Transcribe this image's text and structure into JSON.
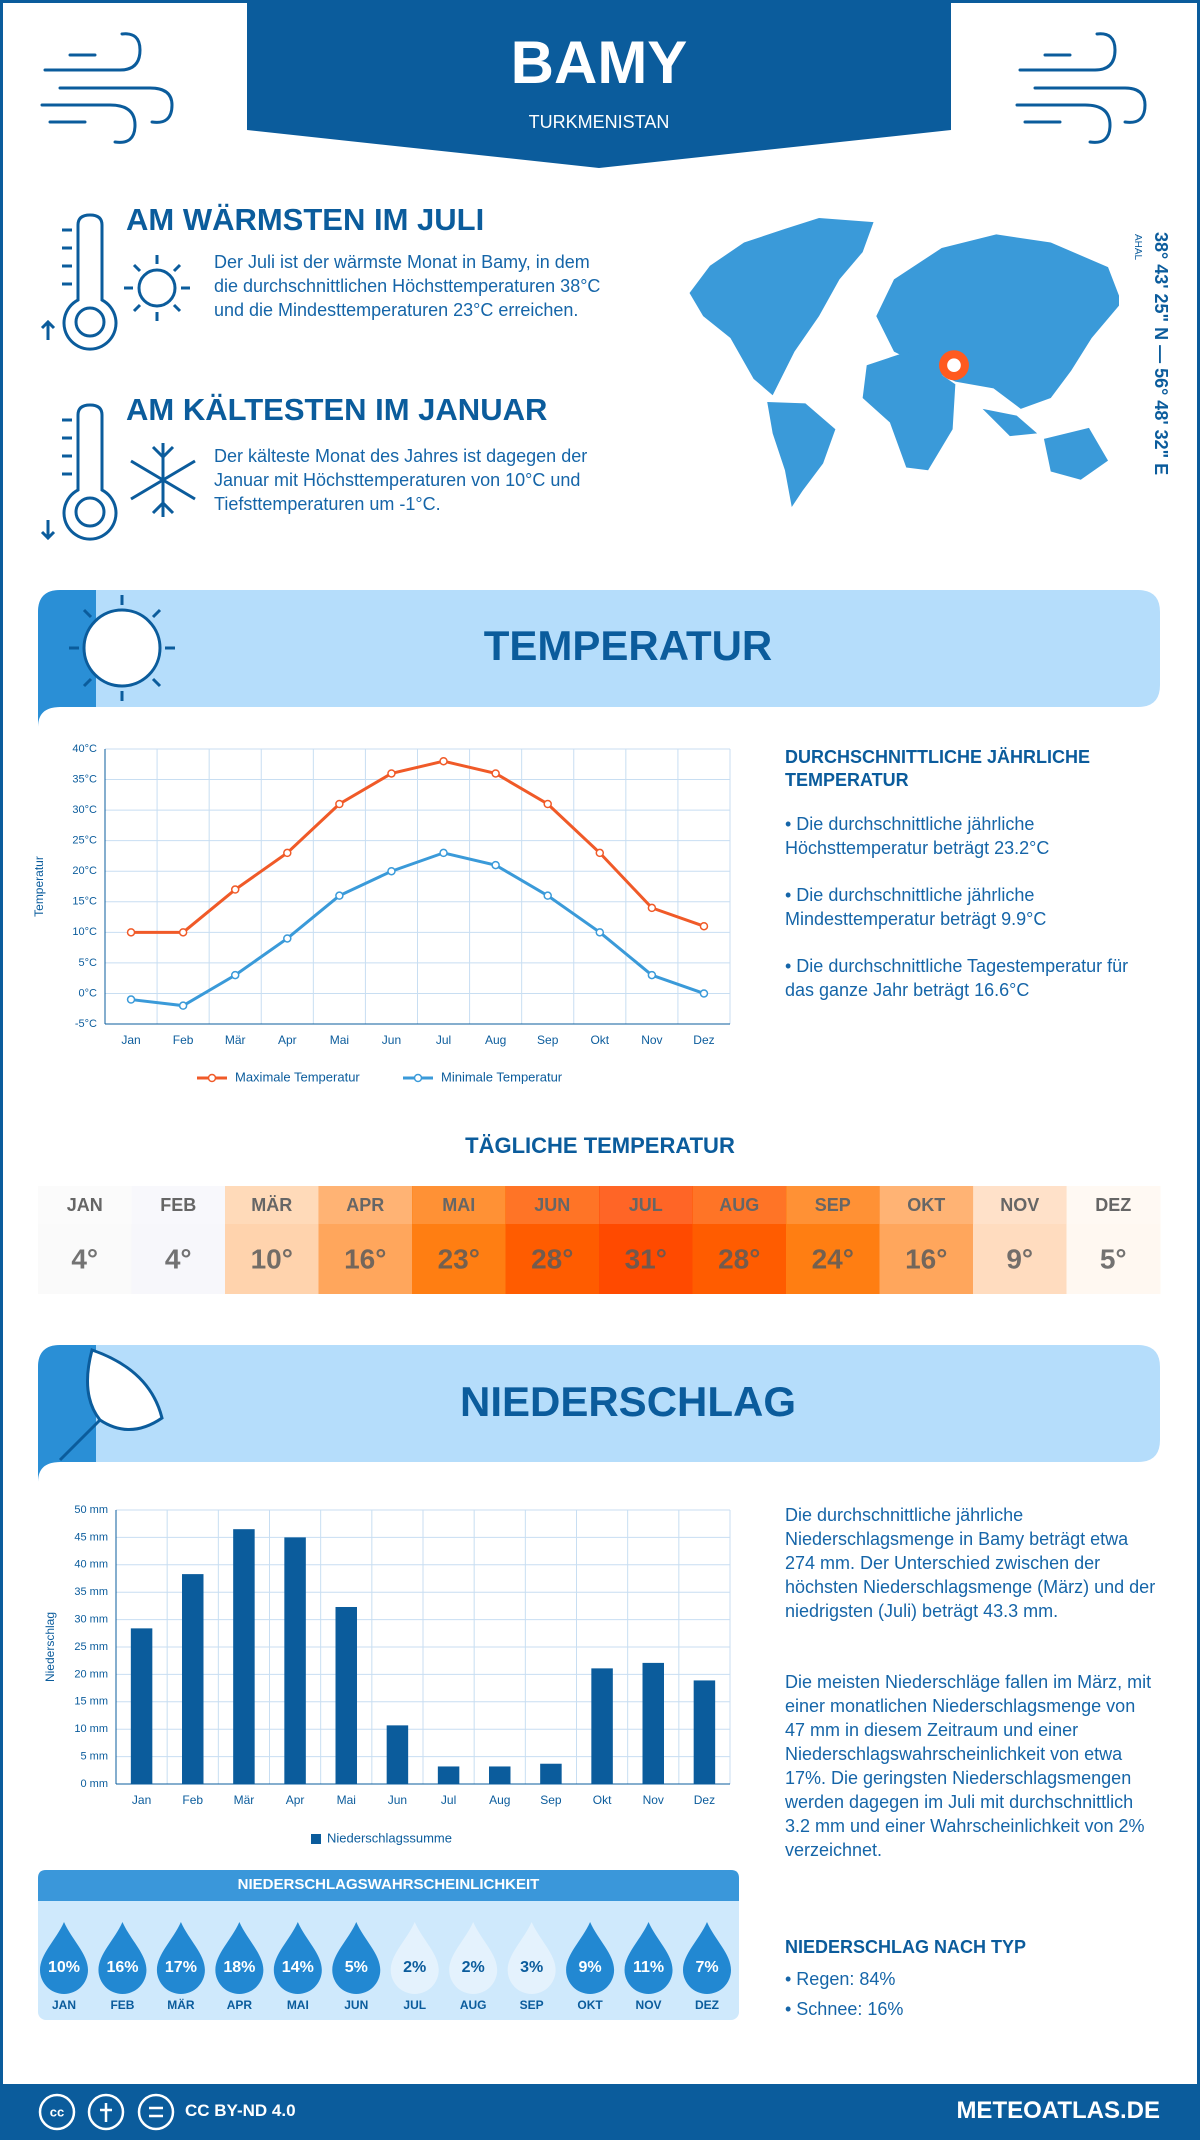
{
  "header": {
    "title": "BAMY",
    "subtitle": "TURKMENISTAN"
  },
  "warmest": {
    "title": "AM WÄRMSTEN IM JULI",
    "text": "Der Juli ist der wärmste Monat in Bamy, in dem die durchschnittlichen Höchsttemperaturen 38°C und die Mindesttemperaturen 23°C erreichen."
  },
  "coldest": {
    "title": "AM KÄLTESTEN IM JANUAR",
    "text": "Der kälteste Monat des Jahres ist dagegen der Januar mit Höchsttemperaturen von 10°C und Tiefsttemperaturen um -1°C."
  },
  "location": {
    "coordinates": "38° 43' 25\" N — 56° 48' 32\" E",
    "region": "AHAL"
  },
  "temperature": {
    "banner": "TEMPERATUR",
    "chart": {
      "type": "line",
      "y_label": "Temperatur",
      "categories": [
        "Jan",
        "Feb",
        "Mär",
        "Apr",
        "Mai",
        "Jun",
        "Jul",
        "Aug",
        "Sep",
        "Okt",
        "Nov",
        "Dez"
      ],
      "ylim": [
        -5,
        40
      ],
      "yticks": [
        {
          "value": -5,
          "label": "-5°C"
        },
        {
          "value": 0,
          "label": "0°C"
        },
        {
          "value": 5,
          "label": "5°C"
        },
        {
          "value": 10,
          "label": "10°C"
        },
        {
          "value": 15,
          "label": "15°C"
        },
        {
          "value": 20,
          "label": "20°C"
        },
        {
          "value": 25,
          "label": "25°C"
        },
        {
          "value": 30,
          "label": "30°C"
        },
        {
          "value": 35,
          "label": "35°C"
        },
        {
          "value": 40,
          "label": "40°C"
        }
      ],
      "grid": true,
      "series": [
        {
          "name": "Maximale Temperatur",
          "color": "#f05a28",
          "values": [
            10,
            10,
            17,
            23,
            31,
            36,
            38,
            36,
            31,
            23,
            14,
            11
          ]
        },
        {
          "name": "Minimale Temperatur",
          "color": "#3a9ad9",
          "values": [
            -1,
            -2,
            3,
            9,
            16,
            20,
            23,
            21,
            16,
            10,
            3,
            0
          ]
        }
      ]
    },
    "summary": {
      "title": "DURCHSCHNITTLICHE JÄHRLICHE TEMPERATUR",
      "bullets": [
        "• Die durchschnittliche jährliche Höchsttemperatur beträgt 23.2°C",
        "• Die durchschnittliche jährliche Mindesttemperatur beträgt 9.9°C",
        "• Die durchschnittliche Tagestemperatur für das ganze Jahr beträgt 16.6°C"
      ]
    }
  },
  "daily_temperature": {
    "title": "TÄGLICHE TEMPERATUR",
    "months": [
      "JAN",
      "FEB",
      "MÄR",
      "APR",
      "MAI",
      "JUN",
      "JUL",
      "AUG",
      "SEP",
      "OKT",
      "NOV",
      "DEZ"
    ],
    "values": [
      4,
      4,
      10,
      16,
      23,
      28,
      31,
      28,
      24,
      16,
      9,
      5
    ],
    "value_labels": [
      "4°",
      "4°",
      "10°",
      "16°",
      "23°",
      "28°",
      "31°",
      "28°",
      "24°",
      "16°",
      "9°",
      "5°"
    ],
    "colors": [
      "#fafafa",
      "#f7f7fb",
      "#ffd3ad",
      "#ffa65c",
      "#ff7e12",
      "#ff5c00",
      "#ff4a00",
      "#ff5c00",
      "#ff7e12",
      "#ffa65c",
      "#ffdcbf",
      "#fff8f1"
    ]
  },
  "precipitation": {
    "banner": "NIEDERSCHLAG",
    "chart": {
      "type": "bar",
      "y_label": "Niederschlag",
      "categories": [
        "Jan",
        "Feb",
        "Mär",
        "Apr",
        "Mai",
        "Jun",
        "Jul",
        "Aug",
        "Sep",
        "Okt",
        "Nov",
        "Dez"
      ],
      "ylim": [
        0,
        50
      ],
      "yticks": [
        {
          "value": 0,
          "label": "0 mm"
        },
        {
          "value": 5,
          "label": "5 mm"
        },
        {
          "value": 10,
          "label": "10 mm"
        },
        {
          "value": 15,
          "label": "15 mm"
        },
        {
          "value": 20,
          "label": "20 mm"
        },
        {
          "value": 25,
          "label": "25 mm"
        },
        {
          "value": 30,
          "label": "30 mm"
        },
        {
          "value": 35,
          "label": "35 mm"
        },
        {
          "value": 40,
          "label": "40 mm"
        },
        {
          "value": 45,
          "label": "45 mm"
        },
        {
          "value": 50,
          "label": "50 mm"
        }
      ],
      "grid": true,
      "series": [
        {
          "name": "Niederschlagssumme",
          "color": "#0b5c9c",
          "values": [
            28.4,
            38.3,
            46.5,
            45,
            32.3,
            10.7,
            3.2,
            3.2,
            3.7,
            21.1,
            22.1,
            18.9
          ]
        }
      ]
    },
    "text": [
      "Die durchschnittliche jährliche Niederschlagsmenge in Bamy beträgt etwa 274 mm. Der Unterschied zwischen der höchsten Niederschlagsmenge (März) und der niedrigsten (Juli) beträgt 43.3 mm.",
      "Die meisten Niederschläge fallen im März, mit einer monatlichen Niederschlagsmenge von 47 mm in diesem Zeitraum und einer Niederschlagswahrscheinlichkeit von etwa 17%. Die geringsten Niederschlagsmengen werden dagegen im Juli mit durchschnittlich 3.2 mm und einer Wahrscheinlichkeit von 2% verzeichnet."
    ],
    "by_type": {
      "title": "NIEDERSCHLAG NACH TYP",
      "items": [
        "• Regen: 84%",
        "• Schnee: 16%"
      ]
    }
  },
  "probability": {
    "title": "NIEDERSCHLAGSWAHRSCHEINLICHKEIT",
    "months": [
      "JAN",
      "FEB",
      "MÄR",
      "APR",
      "MAI",
      "JUN",
      "JUL",
      "AUG",
      "SEP",
      "OKT",
      "NOV",
      "DEZ"
    ],
    "values": [
      10,
      16,
      17,
      18,
      14,
      5,
      2,
      2,
      3,
      9,
      11,
      7
    ],
    "value_labels": [
      "10%",
      "16%",
      "17%",
      "18%",
      "14%",
      "5%",
      "2%",
      "2%",
      "3%",
      "9%",
      "11%",
      "7%"
    ],
    "colors": [
      "#2288d2",
      "#2288d2",
      "#2288d2",
      "#2288d2",
      "#2288d2",
      "#2288d2",
      "#e4f2fd",
      "#e4f2fd",
      "#e4f2fd",
      "#2288d2",
      "#2288d2",
      "#2288d2"
    ]
  },
  "footer": {
    "license": "CC BY-ND 4.0",
    "site": "METEOATLAS.DE"
  }
}
